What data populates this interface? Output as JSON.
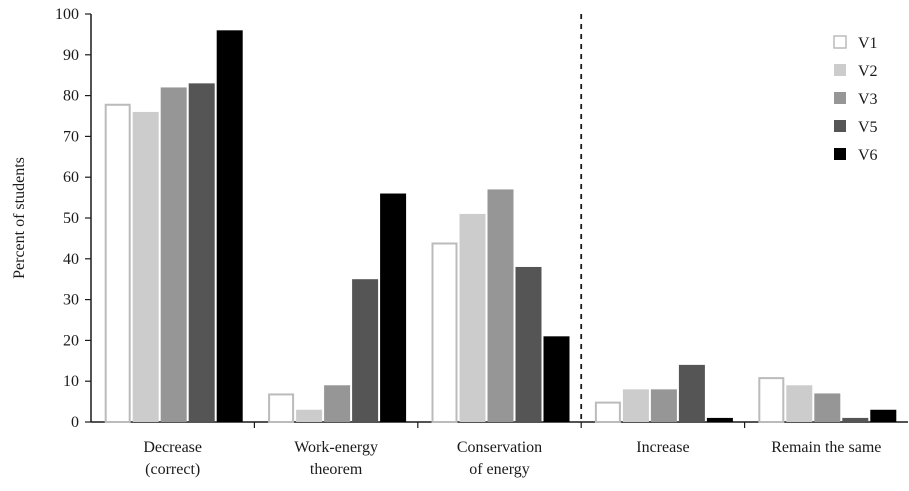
{
  "chart_data": {
    "type": "bar",
    "ylabel": "Percent of students",
    "xlabel": "",
    "title": "",
    "ylim": [
      0,
      100
    ],
    "yticks": [
      0,
      10,
      20,
      30,
      40,
      50,
      60,
      70,
      80,
      90,
      100
    ],
    "grid": false,
    "legend_position": "top-right",
    "categories": [
      [
        "Decrease",
        "(correct)"
      ],
      [
        "Work-energy",
        "theorem"
      ],
      [
        "Conservation",
        "of energy"
      ],
      [
        "Increase"
      ],
      [
        "Remain the same"
      ]
    ],
    "divider_after_category_index": 2,
    "series": [
      {
        "name": "V1",
        "values": [
          78,
          7,
          44,
          5,
          11
        ],
        "fill": "#ffffff",
        "stroke": "#bbbbbb"
      },
      {
        "name": "V2",
        "values": [
          76,
          3,
          51,
          8,
          9
        ],
        "fill": "#cccccc",
        "stroke": "none"
      },
      {
        "name": "V3",
        "values": [
          82,
          9,
          57,
          8,
          7
        ],
        "fill": "#969696",
        "stroke": "none"
      },
      {
        "name": "V5",
        "values": [
          83,
          35,
          38,
          14,
          1
        ],
        "fill": "#555555",
        "stroke": "none"
      },
      {
        "name": "V6",
        "values": [
          96,
          56,
          21,
          1,
          3
        ],
        "fill": "#000000",
        "stroke": "none"
      }
    ]
  }
}
